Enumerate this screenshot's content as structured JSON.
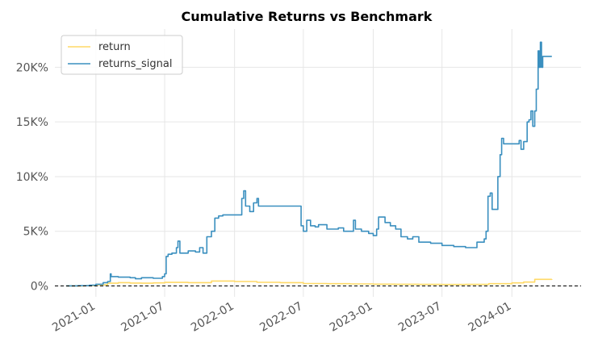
{
  "chart_data": {
    "type": "line",
    "title": "Cumulative Returns vs Benchmark",
    "xlabel": "",
    "ylabel": "",
    "y_tick_labels": [
      "0%",
      "5K%",
      "10K%",
      "15K%",
      "20K%"
    ],
    "y_tick_values": [
      0,
      5000,
      10000,
      15000,
      20000
    ],
    "x_tick_labels": [
      "2021-01",
      "2021-07",
      "2022-01",
      "2022-07",
      "2023-01",
      "2023-07",
      "2024-01"
    ],
    "x_tick_values": [
      "2021-01-01",
      "2021-07-01",
      "2022-01-01",
      "2022-07-01",
      "2023-01-01",
      "2023-07-01",
      "2024-01-01"
    ],
    "xlim": [
      "2020-09-15",
      "2024-07-01"
    ],
    "ylim": [
      -1000,
      23500
    ],
    "grid": true,
    "legend_position": "top-left",
    "baseline": {
      "y": 0,
      "style": "dashed",
      "color": "#000000"
    },
    "series": [
      {
        "name": "return",
        "color": "#ffd966",
        "points": [
          [
            "2020-10-15",
            0
          ],
          [
            "2020-12-01",
            20
          ],
          [
            "2021-01-01",
            100
          ],
          [
            "2021-02-01",
            250
          ],
          [
            "2021-03-01",
            300
          ],
          [
            "2021-04-01",
            260
          ],
          [
            "2021-05-01",
            250
          ],
          [
            "2021-06-01",
            280
          ],
          [
            "2021-07-01",
            320
          ],
          [
            "2021-09-01",
            300
          ],
          [
            "2021-11-01",
            450
          ],
          [
            "2022-01-01",
            400
          ],
          [
            "2022-03-01",
            330
          ],
          [
            "2022-05-01",
            300
          ],
          [
            "2022-07-01",
            220
          ],
          [
            "2022-09-01",
            200
          ],
          [
            "2022-11-01",
            180
          ],
          [
            "2023-01-01",
            160
          ],
          [
            "2023-03-01",
            150
          ],
          [
            "2023-05-01",
            140
          ],
          [
            "2023-07-01",
            130
          ],
          [
            "2023-09-01",
            140
          ],
          [
            "2023-11-01",
            200
          ],
          [
            "2024-01-01",
            280
          ],
          [
            "2024-02-01",
            350
          ],
          [
            "2024-03-01",
            600
          ],
          [
            "2024-04-15",
            620
          ]
        ]
      },
      {
        "name": "returns_signal",
        "color": "#3a8fbf",
        "points": [
          [
            "2020-10-15",
            0
          ],
          [
            "2020-11-15",
            20
          ],
          [
            "2020-12-15",
            60
          ],
          [
            "2021-01-01",
            150
          ],
          [
            "2021-01-20",
            300
          ],
          [
            "2021-02-01",
            400
          ],
          [
            "2021-02-08",
            1100
          ],
          [
            "2021-02-10",
            850
          ],
          [
            "2021-03-01",
            800
          ],
          [
            "2021-04-01",
            750
          ],
          [
            "2021-04-15",
            650
          ],
          [
            "2021-05-01",
            750
          ],
          [
            "2021-06-01",
            700
          ],
          [
            "2021-06-20",
            700
          ],
          [
            "2021-06-25",
            850
          ],
          [
            "2021-07-01",
            1100
          ],
          [
            "2021-07-05",
            2700
          ],
          [
            "2021-07-10",
            2900
          ],
          [
            "2021-07-20",
            3000
          ],
          [
            "2021-08-01",
            3500
          ],
          [
            "2021-08-05",
            4100
          ],
          [
            "2021-08-10",
            3000
          ],
          [
            "2021-09-01",
            3200
          ],
          [
            "2021-09-20",
            3100
          ],
          [
            "2021-10-01",
            3500
          ],
          [
            "2021-10-10",
            3000
          ],
          [
            "2021-10-20",
            4500
          ],
          [
            "2021-11-01",
            5000
          ],
          [
            "2021-11-10",
            6200
          ],
          [
            "2021-11-20",
            6400
          ],
          [
            "2021-12-01",
            6500
          ],
          [
            "2022-01-01",
            6500
          ],
          [
            "2022-01-15",
            6500
          ],
          [
            "2022-01-20",
            8000
          ],
          [
            "2022-01-25",
            8700
          ],
          [
            "2022-01-30",
            7300
          ],
          [
            "2022-02-10",
            6800
          ],
          [
            "2022-02-20",
            7600
          ],
          [
            "2022-03-01",
            8000
          ],
          [
            "2022-03-05",
            7300
          ],
          [
            "2022-04-01",
            7300
          ],
          [
            "2022-05-01",
            7300
          ],
          [
            "2022-06-01",
            7300
          ],
          [
            "2022-06-20",
            7300
          ],
          [
            "2022-06-25",
            5500
          ],
          [
            "2022-07-01",
            5000
          ],
          [
            "2022-07-10",
            6000
          ],
          [
            "2022-07-20",
            5500
          ],
          [
            "2022-08-01",
            5400
          ],
          [
            "2022-08-10",
            5600
          ],
          [
            "2022-09-01",
            5200
          ],
          [
            "2022-10-01",
            5300
          ],
          [
            "2022-10-15",
            5000
          ],
          [
            "2022-11-01",
            5000
          ],
          [
            "2022-11-10",
            6000
          ],
          [
            "2022-11-15",
            5200
          ],
          [
            "2022-12-01",
            5000
          ],
          [
            "2022-12-20",
            4800
          ],
          [
            "2023-01-01",
            4600
          ],
          [
            "2023-01-10",
            5200
          ],
          [
            "2023-01-15",
            6300
          ],
          [
            "2023-02-01",
            5800
          ],
          [
            "2023-02-15",
            5500
          ],
          [
            "2023-03-01",
            5200
          ],
          [
            "2023-03-15",
            4500
          ],
          [
            "2023-04-01",
            4300
          ],
          [
            "2023-04-15",
            4500
          ],
          [
            "2023-05-01",
            4000
          ],
          [
            "2023-06-01",
            3900
          ],
          [
            "2023-07-01",
            3700
          ],
          [
            "2023-08-01",
            3600
          ],
          [
            "2023-09-01",
            3500
          ],
          [
            "2023-09-20",
            3500
          ],
          [
            "2023-10-01",
            4000
          ],
          [
            "2023-10-20",
            4300
          ],
          [
            "2023-10-25",
            5000
          ],
          [
            "2023-10-30",
            8200
          ],
          [
            "2023-11-05",
            8500
          ],
          [
            "2023-11-10",
            7000
          ],
          [
            "2023-11-20",
            7000
          ],
          [
            "2023-11-25",
            10000
          ],
          [
            "2023-12-01",
            12000
          ],
          [
            "2023-12-05",
            13500
          ],
          [
            "2023-12-10",
            13000
          ],
          [
            "2024-01-01",
            13000
          ],
          [
            "2024-01-20",
            13300
          ],
          [
            "2024-01-25",
            12500
          ],
          [
            "2024-02-01",
            13200
          ],
          [
            "2024-02-10",
            15000
          ],
          [
            "2024-02-15",
            15200
          ],
          [
            "2024-02-20",
            16000
          ],
          [
            "2024-02-25",
            14600
          ],
          [
            "2024-03-01",
            16000
          ],
          [
            "2024-03-05",
            18000
          ],
          [
            "2024-03-10",
            21500
          ],
          [
            "2024-03-13",
            20000
          ],
          [
            "2024-03-16",
            22300
          ],
          [
            "2024-03-19",
            20000
          ],
          [
            "2024-03-22",
            21000
          ],
          [
            "2024-04-15",
            21000
          ]
        ]
      }
    ]
  }
}
